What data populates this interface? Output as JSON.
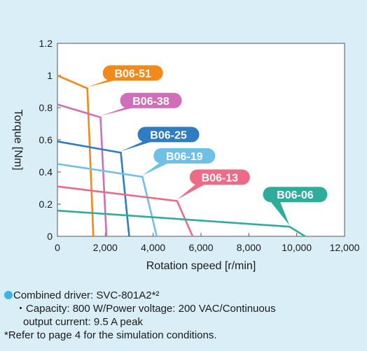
{
  "chart_data": {
    "type": "line",
    "title": "",
    "xlabel": "Rotation speed [r/min]",
    "ylabel": "Torque [Nm]",
    "xlim": [
      0,
      12000
    ],
    "ylim": [
      0,
      1.2
    ],
    "x_ticks": [
      "0",
      "2,000",
      "4,000",
      "6,000",
      "8,000",
      "10,000",
      "12,000"
    ],
    "y_ticks": [
      "0",
      "0.2",
      "0.4",
      "0.6",
      "0.8",
      "1",
      "1.2"
    ],
    "grid": false,
    "series": [
      {
        "name": "B06-51",
        "color": "#f28a1b",
        "points": [
          [
            0,
            1.0
          ],
          [
            1250,
            0.92
          ],
          [
            1500,
            0.0
          ]
        ]
      },
      {
        "name": "B06-38",
        "color": "#cf6fb8",
        "points": [
          [
            0,
            0.82
          ],
          [
            1800,
            0.74
          ],
          [
            2050,
            0.0
          ]
        ]
      },
      {
        "name": "B06-25",
        "color": "#2f7cc1",
        "points": [
          [
            0,
            0.59
          ],
          [
            2650,
            0.52
          ],
          [
            3000,
            0.0
          ]
        ]
      },
      {
        "name": "B06-19",
        "color": "#6ec0e6",
        "points": [
          [
            0,
            0.45
          ],
          [
            3550,
            0.37
          ],
          [
            4150,
            0.0
          ]
        ]
      },
      {
        "name": "B06-13",
        "color": "#ec6b86",
        "points": [
          [
            0,
            0.31
          ],
          [
            5000,
            0.22
          ],
          [
            5650,
            0.0
          ]
        ]
      },
      {
        "name": "B06-06",
        "color": "#2fac9c",
        "points": [
          [
            0,
            0.16
          ],
          [
            9700,
            0.06
          ],
          [
            10350,
            0.0
          ]
        ]
      }
    ]
  },
  "notes": {
    "driver": "Combined driver: SVC-801A2*²",
    "capacity_line1": "・Capacity: 800 W/Power voltage: 200 VAC/Continuous",
    "capacity_line2": "output current: 9.5 A peak",
    "refer": "*Refer to page 4 for the simulation conditions."
  }
}
